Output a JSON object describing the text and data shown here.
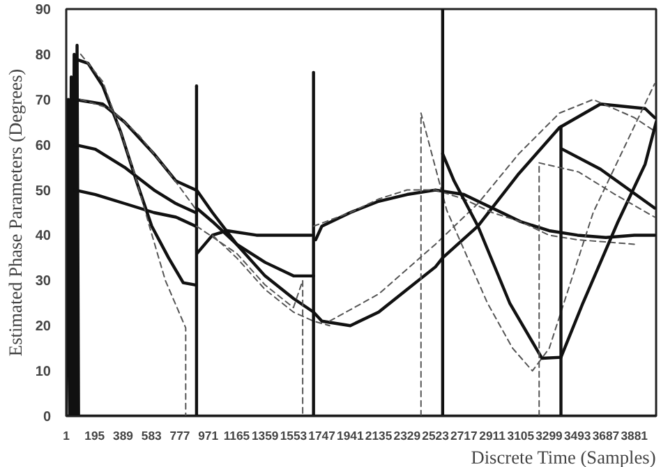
{
  "chart_data": {
    "type": "line",
    "xlabel": "Discrete Time (Samples)",
    "ylabel": "Estimated Phase Parameters (Degrees)",
    "xlim": [
      1,
      4030
    ],
    "ylim": [
      0,
      90
    ],
    "xticks": [
      1,
      195,
      389,
      583,
      777,
      971,
      1165,
      1359,
      1553,
      1747,
      1941,
      2135,
      2329,
      2523,
      2717,
      2911,
      3105,
      3299,
      3493,
      3687,
      3881
    ],
    "yticks": [
      0,
      10,
      20,
      30,
      40,
      50,
      60,
      70,
      80,
      90
    ],
    "grid": false,
    "marker": "none",
    "series": [
      {
        "color": "#111111",
        "line_style": "solid",
        "x": [
          1,
          15,
          25,
          35,
          45,
          55,
          65,
          75,
          85
        ],
        "values": [
          0,
          70,
          0,
          75,
          0,
          80,
          0,
          82,
          0
        ]
      },
      {
        "color": "#111111",
        "line_style": "solid",
        "x": [
          1,
          4030
        ],
        "values": [
          0,
          0
        ]
      },
      {
        "color": "#111111",
        "line_style": "solid",
        "x": [
          60,
          150,
          250,
          371,
          480,
          585,
          700,
          800,
          885
        ],
        "values": [
          79,
          78,
          73,
          63,
          52,
          42,
          35,
          29.5,
          29
        ]
      },
      {
        "color": "#111111",
        "line_style": "solid",
        "x": [
          60,
          250,
          400,
          600,
          750,
          885
        ],
        "values": [
          70,
          69,
          65,
          58,
          52,
          50
        ]
      },
      {
        "color": "#111111",
        "line_style": "solid",
        "x": [
          60,
          200,
          400,
          600,
          750,
          885
        ],
        "values": [
          60,
          59,
          55,
          50,
          47,
          45
        ]
      },
      {
        "color": "#111111",
        "line_style": "solid",
        "x": [
          60,
          200,
          400,
          600,
          750,
          885
        ],
        "values": [
          50,
          49,
          47,
          45,
          44,
          42
        ]
      },
      {
        "color": "#111111",
        "line_style": "solid",
        "x": [
          891,
          891
        ],
        "values": [
          0,
          73
        ]
      },
      {
        "color": "#555555",
        "line_style": "dashed",
        "x": [
          100,
          250,
          350,
          464,
          578,
          678,
          817,
          817
        ],
        "values": [
          80,
          74,
          65,
          54,
          41,
          30,
          19.5,
          0
        ]
      },
      {
        "color": "#555555",
        "line_style": "dashed",
        "x": [
          100,
          300,
          500,
          700,
          880
        ],
        "values": [
          70,
          68,
          62,
          54,
          46
        ]
      },
      {
        "color": "#111111",
        "line_style": "solid",
        "x": [
          895,
          1000,
          1100,
          1300,
          1500,
          1675
        ],
        "values": [
          36,
          40,
          41,
          40,
          40,
          40
        ]
      },
      {
        "color": "#111111",
        "line_style": "solid",
        "x": [
          891,
          1000,
          1165,
          1359,
          1553,
          1690
        ],
        "values": [
          46,
          43,
          38,
          34,
          31,
          31
        ]
      },
      {
        "color": "#111111",
        "line_style": "solid",
        "x": [
          891,
          1000,
          1165,
          1359,
          1553,
          1690,
          1747,
          1941,
          2135,
          2329,
          2523,
          2572,
          2813,
          3092,
          3370,
          3650,
          3955,
          4020
        ],
        "values": [
          50,
          45,
          38,
          31,
          26,
          23,
          21,
          20,
          23,
          28,
          33,
          35,
          42,
          53.6,
          63.8,
          69,
          68,
          66
        ]
      },
      {
        "color": "#555555",
        "line_style": "dashed",
        "x": [
          891,
          1165,
          1359,
          1553,
          1616,
          1616
        ],
        "values": [
          42,
          36,
          29,
          24,
          30,
          0
        ]
      },
      {
        "color": "#555555",
        "line_style": "dashed",
        "x": [
          1000,
          1165,
          1359,
          1553,
          1690,
          1800
        ],
        "values": [
          40,
          35,
          28,
          23,
          21,
          20
        ]
      },
      {
        "color": "#111111",
        "line_style": "solid",
        "x": [
          1690,
          1690
        ],
        "values": [
          0,
          76
        ]
      },
      {
        "color": "#111111",
        "line_style": "solid",
        "x": [
          1705,
          1747,
          1941,
          2135,
          2329,
          2523,
          2717,
          2911,
          3105,
          3299,
          3493,
          3687,
          3881,
          4020
        ],
        "values": [
          39,
          42,
          45,
          47.5,
          49,
          50,
          49,
          46,
          43,
          41,
          40,
          39.5,
          40,
          40
        ]
      },
      {
        "color": "#555555",
        "line_style": "dashed",
        "x": [
          1800,
          2135,
          2523,
          2813,
          3092,
          3370,
          3600,
          3881,
          4020
        ],
        "values": [
          21,
          27,
          38,
          47,
          58,
          67,
          70,
          66,
          63
        ]
      },
      {
        "color": "#555555",
        "line_style": "dashed",
        "x": [
          1690,
          1941,
          2135,
          2329,
          2523,
          2717,
          2911,
          3105,
          3299,
          3493,
          3881
        ],
        "values": [
          42,
          45,
          48,
          50,
          50,
          48,
          45,
          43,
          40,
          39,
          38
        ]
      },
      {
        "color": "#555555",
        "line_style": "dashed",
        "x": [
          2424,
          2424,
          2600,
          2878,
          3050,
          3185,
          3300,
          3600,
          4020
        ],
        "values": [
          0,
          67,
          45.5,
          25,
          15,
          10,
          15,
          45,
          73.5
        ]
      },
      {
        "color": "#111111",
        "line_style": "solid",
        "x": [
          2572,
          2572
        ],
        "values": [
          0,
          90
        ]
      },
      {
        "color": "#111111",
        "line_style": "solid",
        "x": [
          2572,
          2650,
          2813,
          3030,
          3250,
          3380
        ],
        "values": [
          58,
          52,
          42,
          25,
          12.8,
          13
        ]
      },
      {
        "color": "#555555",
        "line_style": "dashed",
        "x": [
          3231,
          3231
        ],
        "values": [
          0,
          56
        ]
      },
      {
        "color": "#111111",
        "line_style": "solid",
        "x": [
          3380,
          3380
        ],
        "values": [
          0,
          64
        ]
      },
      {
        "color": "#111111",
        "line_style": "solid",
        "x": [
          3380,
          3530,
          3770,
          3955,
          4030
        ],
        "values": [
          13,
          25,
          43,
          55.7,
          65
        ]
      },
      {
        "color": "#111111",
        "line_style": "solid",
        "x": [
          3390,
          3650,
          4020
        ],
        "values": [
          59,
          54.6,
          46
        ]
      },
      {
        "color": "#555555",
        "line_style": "dashed",
        "x": [
          3231,
          3500,
          3750,
          4020
        ],
        "values": [
          56,
          54,
          49,
          44
        ]
      }
    ]
  }
}
